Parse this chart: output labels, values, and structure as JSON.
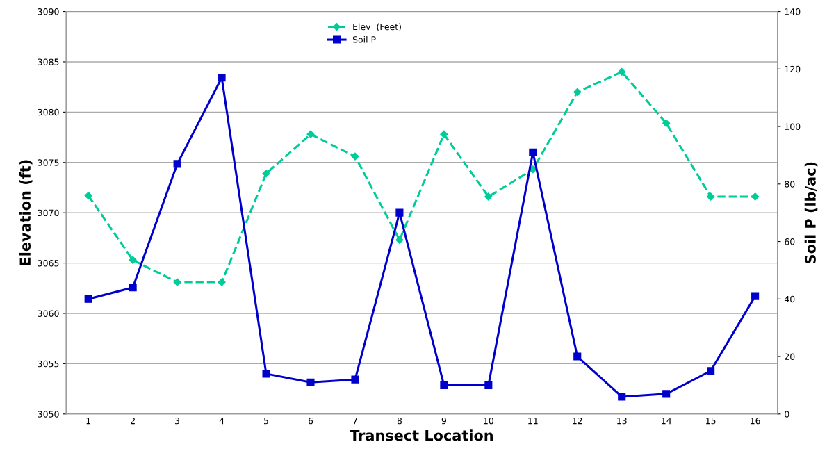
{
  "chart_data": {
    "type": "line",
    "xlabel": "Transect Location",
    "ylabel": "Elevation (ft)",
    "y2label": "Soil P (lb/ac)",
    "categories": [
      "1",
      "2",
      "3",
      "4",
      "5",
      "6",
      "7",
      "8",
      "9",
      "10",
      "11",
      "12",
      "13",
      "14",
      "15",
      "16"
    ],
    "series": [
      {
        "name": "Elev  (Feet)",
        "color": "#00cc99",
        "marker": "diamond",
        "line_style": "dashed",
        "values": [
          3071.7,
          3065.3,
          3063.1,
          3063.1,
          3073.9,
          3077.8,
          3075.6,
          3067.3,
          3077.8,
          3071.6,
          3074.3,
          3082.0,
          3084.0,
          3078.9,
          3071.6,
          3071.6
        ]
      },
      {
        "name": "Soil P",
        "color": "#0000cc",
        "marker": "square",
        "line_style": "solid",
        "axis": "y2",
        "values": [
          40,
          44,
          87,
          117,
          14,
          11,
          12,
          70,
          10,
          10,
          91,
          20,
          6,
          7,
          15,
          41
        ]
      }
    ],
    "ylim": [
      3050,
      3090
    ],
    "yticks": [
      3050,
      3055,
      3060,
      3065,
      3070,
      3075,
      3080,
      3085,
      3090
    ],
    "y2lim": [
      0,
      140
    ],
    "y2ticks": [
      0,
      20,
      40,
      60,
      80,
      100,
      120,
      140
    ],
    "grid": "y",
    "legend": "top"
  }
}
